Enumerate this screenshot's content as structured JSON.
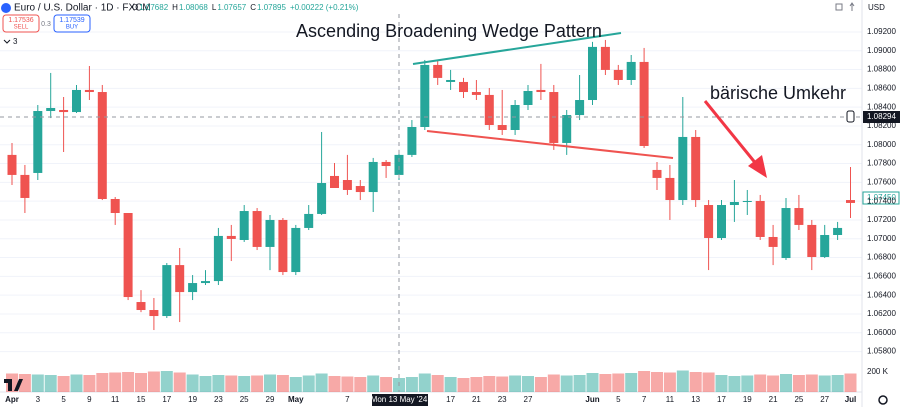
{
  "header": {
    "symbol": "Euro / U.S. Dollar · 1D · FXCM",
    "legend": [
      {
        "label": "O",
        "value": "1.07682"
      },
      {
        "label": "H",
        "value": "1.08068"
      },
      {
        "label": "L",
        "value": "1.07657"
      },
      {
        "label": "C",
        "value": "1.07895"
      }
    ],
    "change": "+0.00222 (+0.21%)",
    "sell_price": "1.17536",
    "sell_label": "SELL",
    "spread": "0.3",
    "buy_price": "1.17539",
    "buy_label": "BUY",
    "indicators_count": "3",
    "currency": "USD"
  },
  "chart_data": {
    "type": "candlestick",
    "title": "Ascending Broadening Wedge Pattern",
    "annotation": "bärische Umkehr",
    "categories": [
      "Apr",
      null,
      "3",
      null,
      "5",
      null,
      "9",
      null,
      "11",
      null,
      "15",
      null,
      "17",
      null,
      "19",
      null,
      "23",
      null,
      "25",
      null,
      "29",
      null,
      "May",
      null,
      null,
      null,
      "7",
      null,
      null,
      null,
      null,
      null,
      null,
      null,
      "17",
      null,
      "21",
      null,
      "23",
      null,
      "27",
      null,
      null,
      null,
      null,
      "Jun",
      null,
      "5",
      null,
      "7",
      null,
      "11",
      null,
      "13",
      null,
      "17",
      null,
      "19",
      null,
      "21",
      null,
      "25",
      null,
      "27",
      null,
      "Jul"
    ],
    "open": [
      1.07892,
      1.07679,
      1.077,
      1.08359,
      1.0837,
      1.08348,
      1.08583,
      1.08561,
      1.07423,
      1.07274,
      1.06327,
      1.06242,
      1.06178,
      1.0672,
      1.06433,
      1.06529,
      1.0655,
      1.0703,
      1.06987,
      1.07295,
      1.06913,
      1.072,
      1.06646,
      1.07115,
      1.07264,
      1.07668,
      1.07625,
      1.07561,
      1.07497,
      1.07817,
      1.07679,
      1.07892,
      1.08189,
      1.08849,
      1.08668,
      1.08668,
      1.08561,
      1.0853,
      1.0821,
      1.08157,
      1.08423,
      1.08583,
      1.08561,
      1.08019,
      1.08316,
      1.08476,
      1.09041,
      1.08796,
      1.08689,
      1.08881,
      1.07732,
      1.07647,
      1.07412,
      1.08083,
      1.07359,
      1.07008,
      1.07359,
      1.07391,
      1.07402,
      1.07019,
      1.06795,
      1.07327,
      1.07147,
      1.06806,
      1.0704,
      1.07412
    ],
    "high": [
      1.08019,
      1.07785,
      1.08423,
      1.08764,
      1.08508,
      1.08636,
      1.08838,
      1.08636,
      1.07444,
      1.07274,
      1.06454,
      1.0637,
      1.06742,
      1.06902,
      1.06614,
      1.06667,
      1.07115,
      1.07147,
      1.07359,
      1.07327,
      1.07253,
      1.07221,
      1.07147,
      1.07359,
      1.08136,
      1.07806,
      1.07892,
      1.07625,
      1.0786,
      1.07838,
      1.07945,
      1.08263,
      1.08902,
      1.08902,
      1.08796,
      1.08711,
      1.08689,
      1.08604,
      1.08583,
      1.08476,
      1.08636,
      1.0886,
      1.08636,
      1.0837,
      1.08742,
      1.09094,
      1.09115,
      1.08849,
      1.08955,
      1.0903,
      1.07817,
      1.07785,
      1.08508,
      1.08157,
      1.07412,
      1.07412,
      1.07625,
      1.07519,
      1.07466,
      1.07147,
      1.07434,
      1.07466,
      1.072,
      1.07147,
      1.07179,
      1.07764
    ],
    "low": [
      1.07572,
      1.07274,
      1.07625,
      1.08284,
      1.07923,
      1.08338,
      1.08476,
      1.07412,
      1.07147,
      1.06348,
      1.0622,
      1.06029,
      1.06157,
      1.06114,
      1.06348,
      1.06508,
      1.06508,
      1.06763,
      1.06966,
      1.0688,
      1.06667,
      1.06614,
      1.06614,
      1.07093,
      1.07253,
      1.0754,
      1.07466,
      1.07412,
      1.07285,
      1.07647,
      1.07625,
      1.0787,
      1.08157,
      1.08636,
      1.08583,
      1.08498,
      1.08476,
      1.08157,
      1.08104,
      1.08104,
      1.0837,
      1.08476,
      1.07945,
      1.07892,
      1.08263,
      1.08423,
      1.08742,
      1.08636,
      1.08636,
      1.07966,
      1.07519,
      1.072,
      1.07359,
      1.07338,
      1.06667,
      1.06987,
      1.07179,
      1.07253,
      1.06987,
      1.0672,
      1.06774,
      1.07093,
      1.06667,
      1.06795,
      1.06987,
      1.07221
    ],
    "close": [
      1.07679,
      1.07434,
      1.08359,
      1.08391,
      1.08348,
      1.08583,
      1.08561,
      1.07423,
      1.07274,
      1.0638,
      1.06242,
      1.06178,
      1.0672,
      1.06433,
      1.06529,
      1.0655,
      1.0703,
      1.06998,
      1.07295,
      1.06913,
      1.072,
      1.06646,
      1.07115,
      1.07264,
      1.07593,
      1.0754,
      1.07519,
      1.07497,
      1.07817,
      1.07774,
      1.07892,
      1.08189,
      1.08849,
      1.08711,
      1.08689,
      1.08561,
      1.0853,
      1.0821,
      1.08157,
      1.08423,
      1.08572,
      1.08561,
      1.08019,
      1.08316,
      1.08476,
      1.09041,
      1.08796,
      1.08689,
      1.08881,
      1.07987,
      1.07647,
      1.07412,
      1.08083,
      1.07412,
      1.07008,
      1.07359,
      1.07391,
      1.07402,
      1.07019,
      1.06913,
      1.07327,
      1.07147,
      1.06806,
      1.0704,
      1.07115,
      1.07381
    ],
    "up_color": "#26a69a",
    "down_color": "#ef5350",
    "ylim": [
      1.05689,
      1.09391
    ],
    "yticks": [
      {
        "value": 1.092,
        "label": "1.09200"
      },
      {
        "value": 1.09,
        "label": "1.09000"
      },
      {
        "value": 1.088,
        "label": "1.08800"
      },
      {
        "value": 1.086,
        "label": "1.08600"
      },
      {
        "value": 1.084,
        "label": "1.08400"
      },
      {
        "value": 1.082,
        "label": "1.08200"
      },
      {
        "value": 1.08,
        "label": "1.08000"
      },
      {
        "value": 1.078,
        "label": "1.07800"
      },
      {
        "value": 1.076,
        "label": "1.07600"
      },
      {
        "value": 1.074,
        "label": "1.07400"
      },
      {
        "value": 1.072,
        "label": "1.07200"
      },
      {
        "value": 1.07,
        "label": "1.07000"
      },
      {
        "value": 1.068,
        "label": "1.06800"
      },
      {
        "value": 1.066,
        "label": "1.06600"
      },
      {
        "value": 1.064,
        "label": "1.06400"
      },
      {
        "value": 1.062,
        "label": "1.06200"
      },
      {
        "value": 1.06,
        "label": "1.06000"
      },
      {
        "value": 1.058,
        "label": "1.05800"
      }
    ],
    "grid": true,
    "volume": {
      "values": [
        185000,
        180000,
        175000,
        170000,
        160000,
        175000,
        170000,
        190000,
        195000,
        200000,
        190000,
        205000,
        210000,
        195000,
        175000,
        160000,
        170000,
        165000,
        160000,
        165000,
        175000,
        170000,
        150000,
        165000,
        185000,
        160000,
        155000,
        150000,
        165000,
        150000,
        140000,
        150000,
        185000,
        170000,
        150000,
        140000,
        150000,
        160000,
        155000,
        165000,
        160000,
        150000,
        175000,
        165000,
        170000,
        190000,
        180000,
        185000,
        190000,
        210000,
        200000,
        195000,
        215000,
        200000,
        195000,
        170000,
        160000,
        165000,
        175000,
        165000,
        180000,
        170000,
        175000,
        165000,
        170000,
        185000
      ],
      "ylim": [
        0,
        300000
      ],
      "yticks": [
        {
          "value": 200000,
          "label": "200 K"
        }
      ],
      "up_color": "rgba(38,166,154,0.5)",
      "down_color": "rgba(239,83,80,0.5)"
    },
    "crosshair": {
      "price_label": "1.08294",
      "date_label": "Mon 13 May '24"
    },
    "last_price_label": "1.07450"
  }
}
